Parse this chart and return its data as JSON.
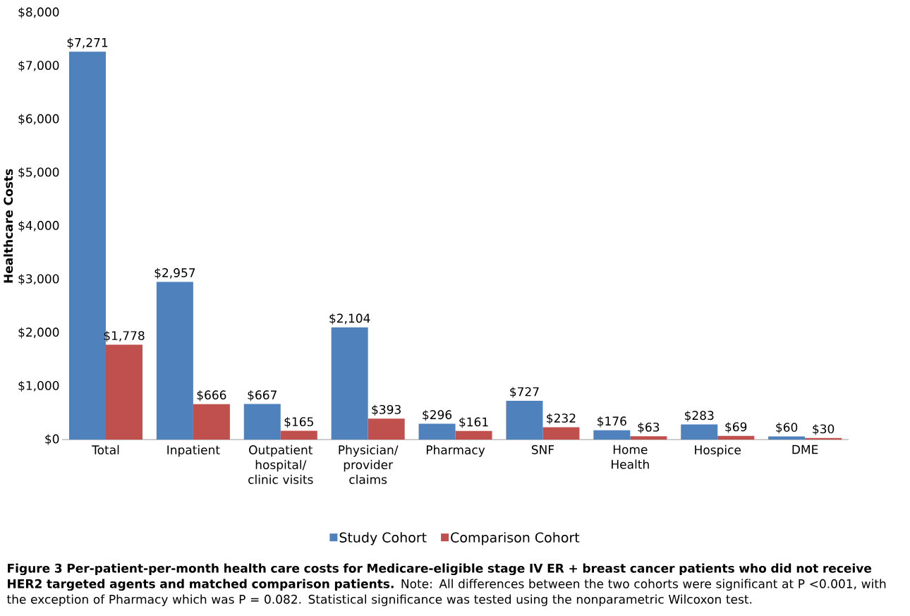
{
  "chart_data": {
    "type": "bar",
    "ylabel": "Healthcare Costs",
    "categories": [
      "Total",
      "Inpatient",
      "Outpatient hospital/ clinic visits",
      "Physician/ provider claims",
      "Pharmacy",
      "SNF",
      "Home Health",
      "Hospice",
      "DME"
    ],
    "series": [
      {
        "name": "Study Cohort",
        "color": "#4f81bd",
        "values": [
          7271,
          2957,
          667,
          2104,
          296,
          727,
          176,
          283,
          60
        ],
        "value_labels": [
          "$7,271",
          "$2,957",
          "$667",
          "$2,104",
          "$296",
          "$727",
          "$176",
          "$283",
          "$60"
        ]
      },
      {
        "name": "Comparison Cohort",
        "color": "#c0504d",
        "values": [
          1778,
          666,
          165,
          393,
          161,
          232,
          63,
          69,
          30
        ],
        "value_labels": [
          "$1,778",
          "$666",
          "$165",
          "$393",
          "$161",
          "$232",
          "$63",
          "$69",
          "$30"
        ]
      }
    ],
    "ylim": [
      0,
      8000
    ],
    "yticks": [
      {
        "value": 0,
        "label": "$0"
      },
      {
        "value": 1000,
        "label": "$1,000"
      },
      {
        "value": 2000,
        "label": "$2,000"
      },
      {
        "value": 3000,
        "label": "$3,000"
      },
      {
        "value": 4000,
        "label": "$4,000"
      },
      {
        "value": 5000,
        "label": "$5,000"
      },
      {
        "value": 6000,
        "label": "$6,000"
      },
      {
        "value": 7000,
        "label": "$7,000"
      },
      {
        "value": 8000,
        "label": "$8,000"
      }
    ],
    "grid": false,
    "legend": "bottom",
    "annotations": [
      "**Figure 3 Per-patient-per-month health care costs for Medicare-eligible stage IV ER + breast cancer patients who did not receive HER2 targeted agents and matched comparison patients.** Note: All differences between the two cohorts were significant at P <0.001, with the exception of Pharmacy which was P = 0.082. Statistical significance was tested using the nonparametric Wilcoxon test."
    ]
  }
}
